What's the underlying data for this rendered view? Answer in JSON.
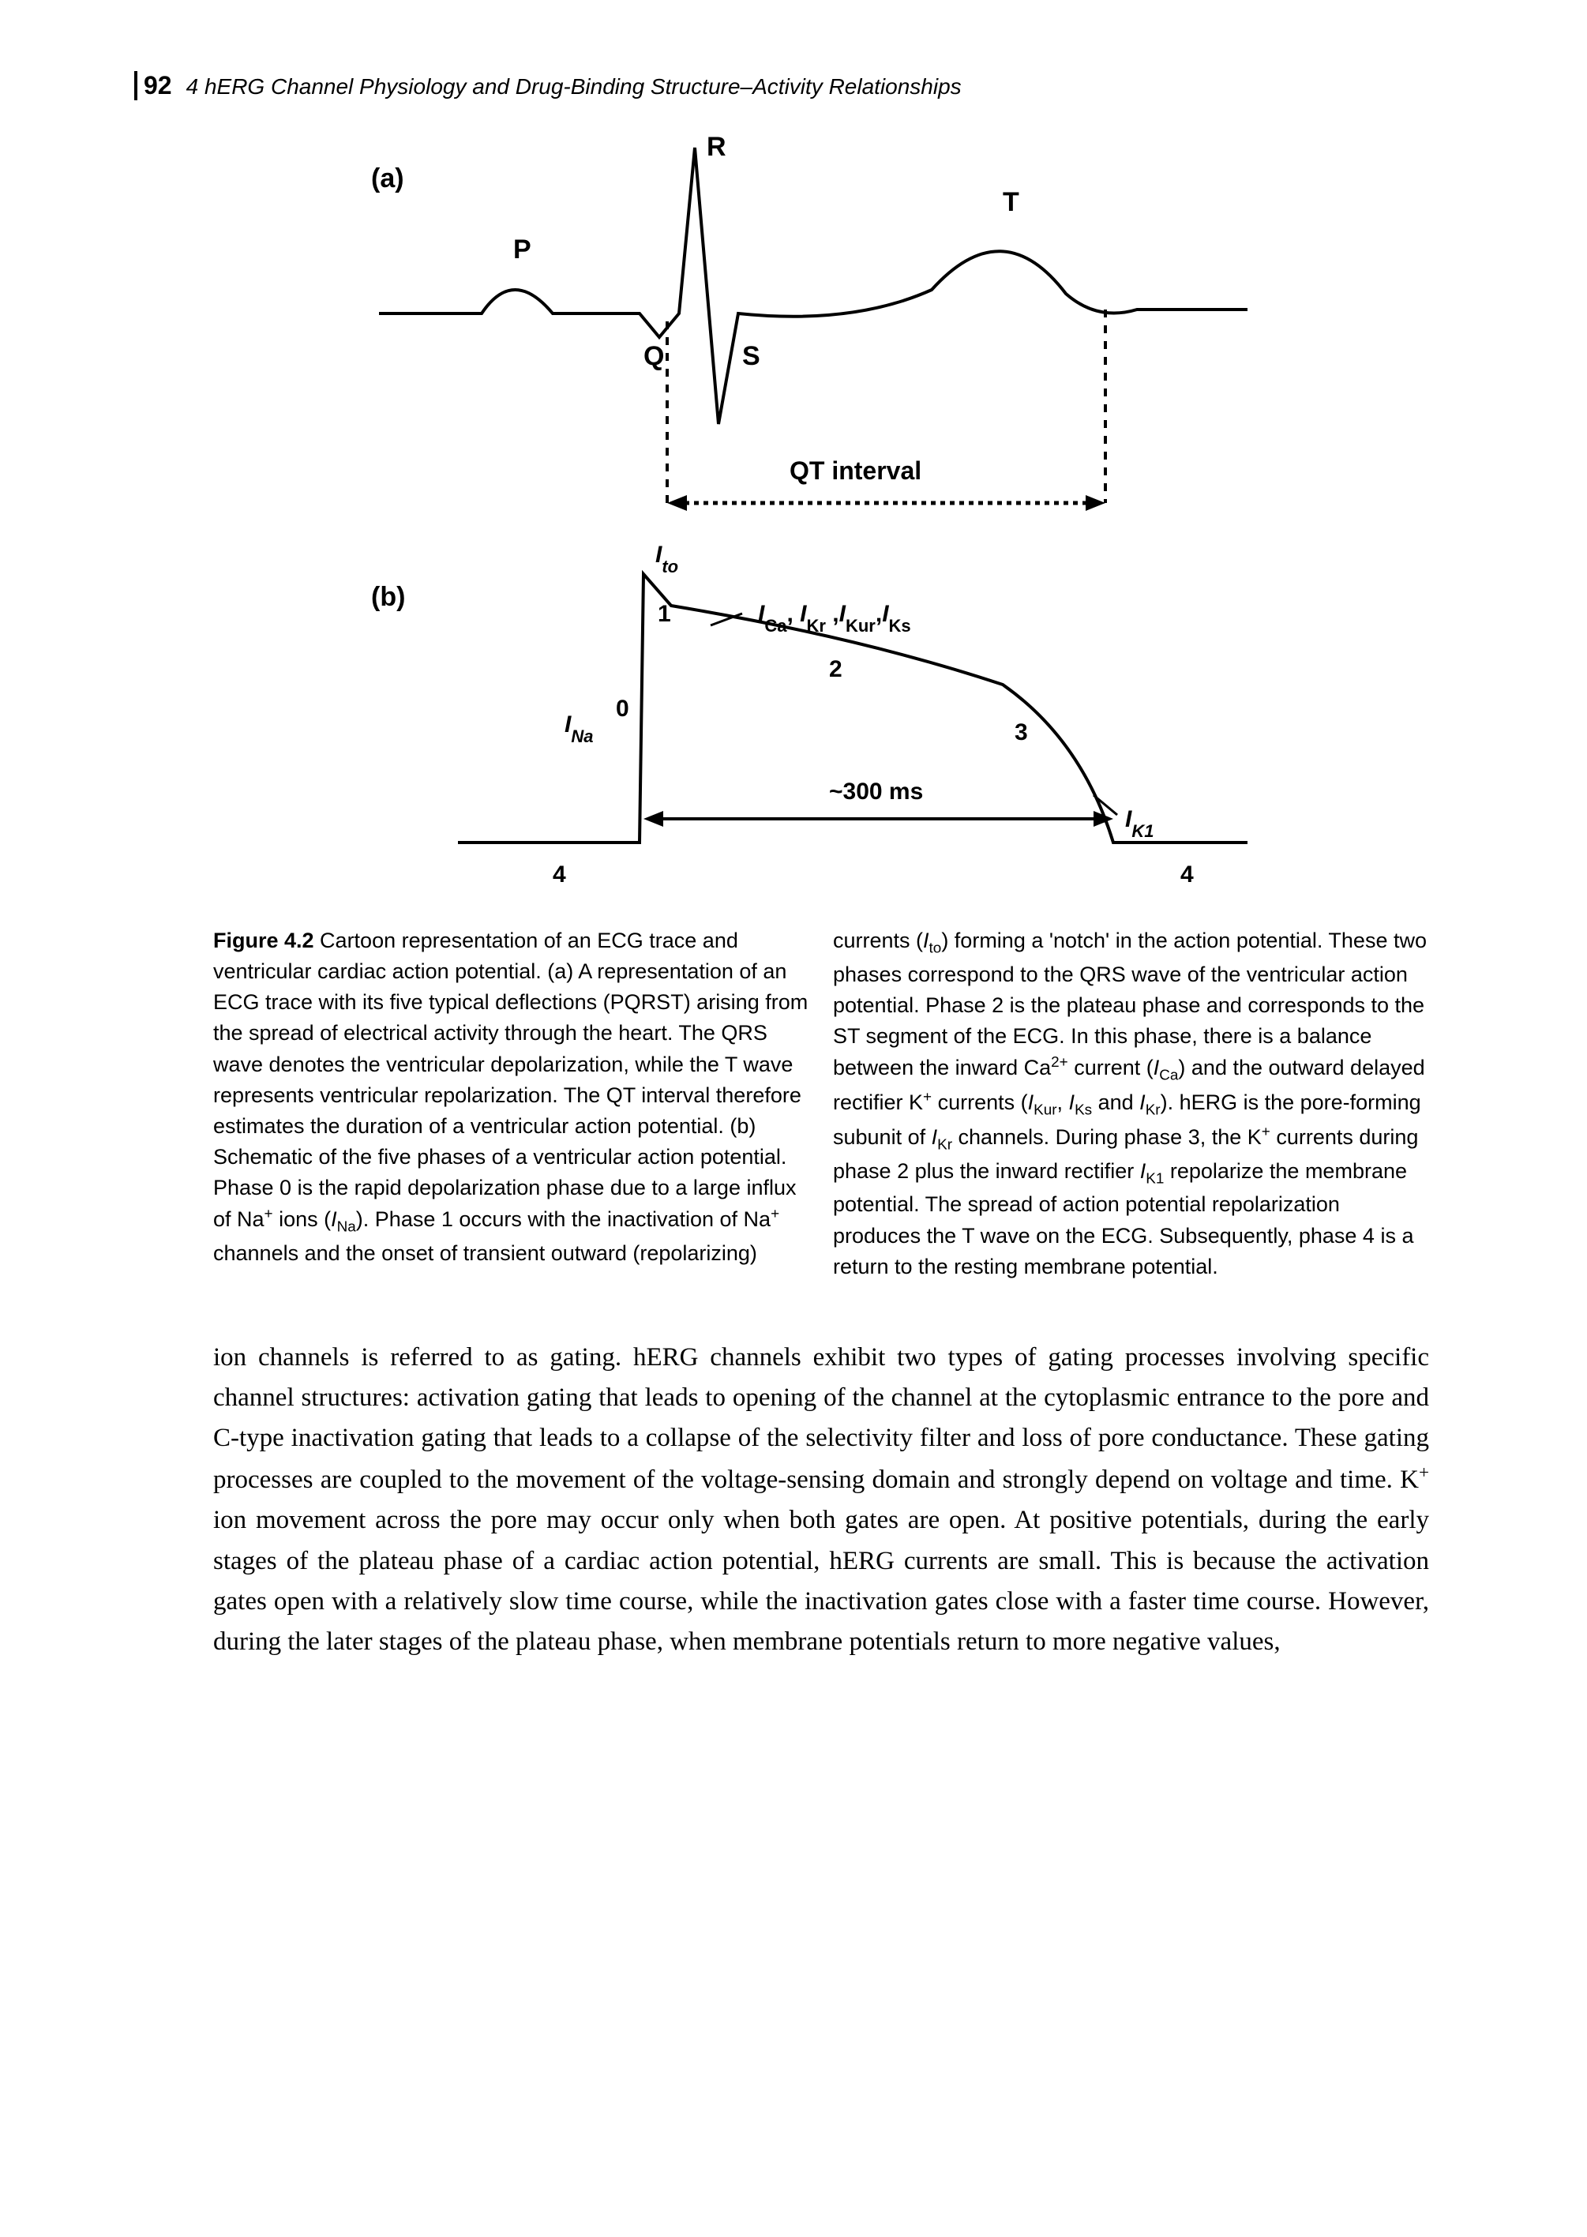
{
  "header": {
    "page_number": "92",
    "running_title": "4 hERG Channel Physiology and Drug-Binding Structure–Activity Relationships"
  },
  "figure": {
    "panel_a_label": "(a)",
    "panel_b_label": "(b)",
    "ecg": {
      "labels": {
        "P": "P",
        "Q": "Q",
        "R": "R",
        "S": "S",
        "T": "T",
        "qt_interval": "QT interval"
      },
      "stroke_color": "#000000",
      "stroke_width": 4,
      "dash_pattern": "8 8"
    },
    "ap": {
      "phase_labels": [
        "0",
        "1",
        "2",
        "3",
        "4",
        "4"
      ],
      "currents": {
        "I_Na": "I_Na",
        "I_to": "I_to",
        "plateau": "I_Ca, I_Kr ,I_Kur,I_Ks",
        "I_K1": "I_K1"
      },
      "duration_label": "~300 ms",
      "stroke_color": "#000000",
      "stroke_width": 4
    },
    "caption_html": "<span class=\"fig-label\">Figure 4.2</span> Cartoon representation of an ECG trace and ventricular cardiac action potential. (a) A representation of an ECG trace with its five typical deflections (PQRST) arising from the spread of electrical activity through the heart. The QRS wave denotes the ventricular depolarization, while the T wave represents ventricular repolarization. The QT interval therefore estimates the duration of a ventricular action potential. (b) Schematic of the five phases of a ventricular action potential. Phase 0 is the rapid depolarization phase due to a large influx of Na<sup>+</sup> ions (<span class=\"ital\">I</span><sub>Na</sub>). Phase 1 occurs with the inactivation of Na<sup>+</sup> channels and the onset of transient outward (repolarizing) currents (<span class=\"ital\">I</span><sub>to</sub>) forming a 'notch' in the action potential. These two phases correspond to the QRS wave of the ventricular action potential. Phase 2 is the plateau phase and corresponds to the ST segment of the ECG. In this phase, there is a balance between the inward Ca<sup>2+</sup> current (<span class=\"ital\">I</span><sub>Ca</sub>) and the outward delayed rectifier K<sup>+</sup> currents (<span class=\"ital\">I</span><sub>Kur</sub>, <span class=\"ital\">I</span><sub>Ks</sub> and <span class=\"ital\">I</span><sub>Kr</sub>). hERG is the pore-forming subunit of <span class=\"ital\">I</span><sub>Kr</sub> channels. During phase 3, the K<sup>+</sup> currents during phase 2 plus the inward rectifier <span class=\"ital\">I</span><sub>K1</sub> repolarize the membrane potential. The spread of action potential repolarization produces the T wave on the ECG. Subsequently, phase 4 is a return to the resting membrane potential."
  },
  "body_paragraph": "ion channels is referred to as gating. hERG channels exhibit two types of gating processes involving specific channel structures: activation gating that leads to opening of the channel at the cytoplasmic entrance to the pore and C-type inactivation gating that leads to a collapse of the selectivity filter and loss of pore conductance. These gating processes are coupled to the movement of the voltage-sensing domain and strongly depend on voltage and time. K<sup>+</sup> ion movement across the pore may occur only when both gates are open. At positive potentials, during the early stages of the plateau phase of a cardiac action potential, hERG currents are small. This is because the activation gates open with a relatively slow time course, while the inactivation gates close with a faster time course. However, during the later stages of the plateau phase, when membrane potentials return to more negative values,",
  "colors": {
    "background": "#ffffff",
    "text": "#000000",
    "stroke": "#000000"
  },
  "fonts": {
    "header_family": "Arial, Helvetica, sans-serif",
    "caption_family": "Arial, Helvetica, sans-serif",
    "body_family": "Georgia, 'Times New Roman', serif",
    "page_number_size_pt": 24,
    "running_title_size_pt": 21,
    "caption_size_pt": 20,
    "body_size_pt": 25
  }
}
